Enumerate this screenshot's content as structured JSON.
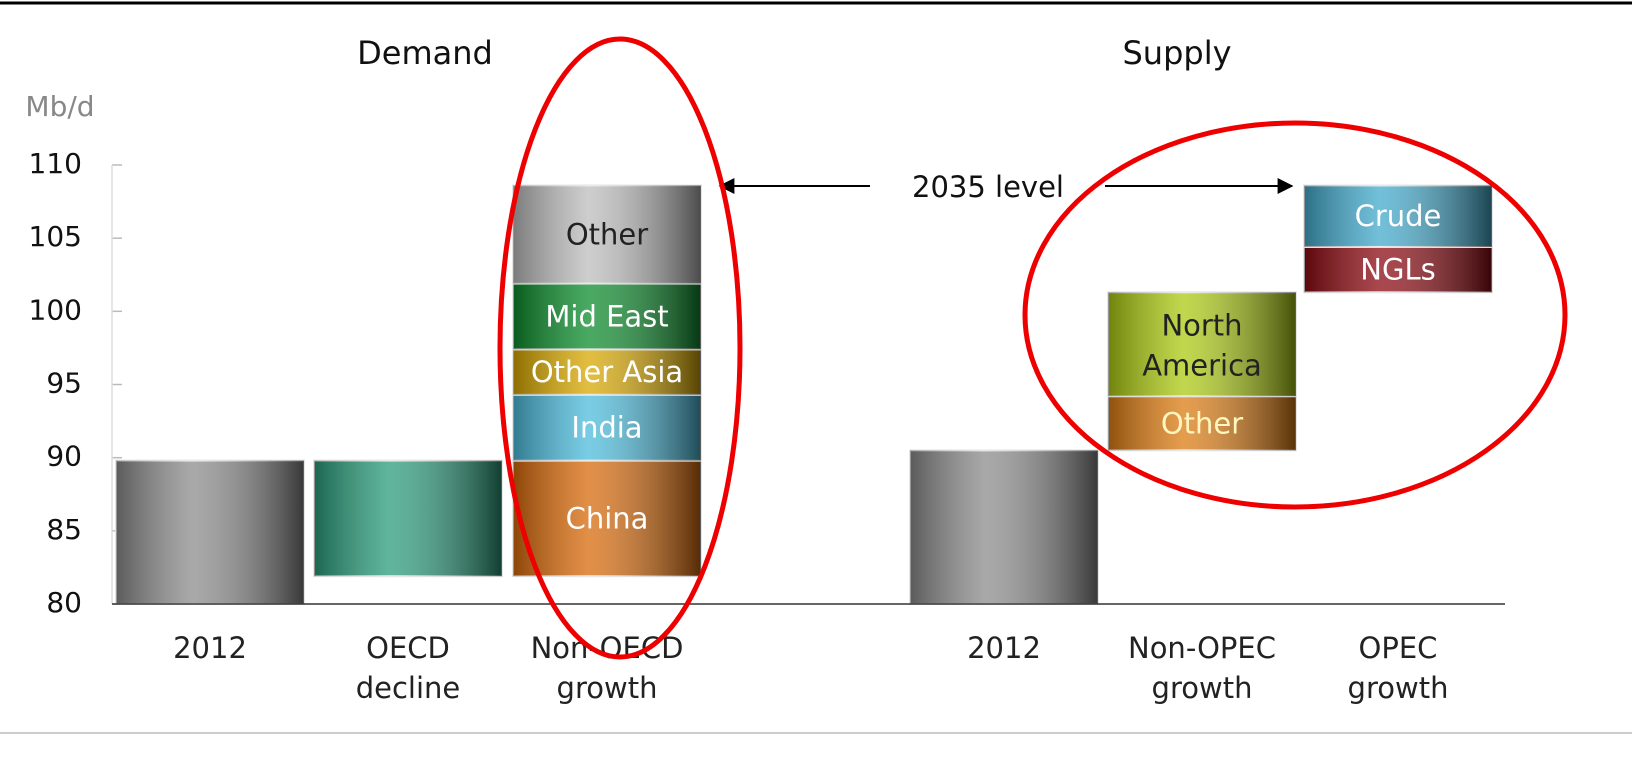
{
  "chart_data": {
    "type": "waterfall",
    "y_label": "Mb/d",
    "ylim": [
      80,
      110
    ],
    "yticks": [
      80,
      85,
      90,
      95,
      100,
      105,
      110
    ],
    "annotation": "2035 level",
    "panels": [
      {
        "title": "Demand",
        "columns": [
          {
            "label": [
              "2012"
            ],
            "segments": [
              {
                "value": 89.8,
                "color": "#8c8c8c"
              }
            ]
          },
          {
            "label": [
              "OECD",
              "decline"
            ],
            "segments": [
              {
                "value": -7.9,
                "color": "#2a9c7a"
              }
            ]
          },
          {
            "label": [
              "Non-OECD",
              "growth"
            ],
            "segments": [
              {
                "name": "China",
                "value": 7.9,
                "color": "#d86a0a",
                "text_color": "#ffffff"
              },
              {
                "name": "India",
                "value": 4.5,
                "color": "#4cbcdc",
                "text_color": "#ffffff"
              },
              {
                "name": "Other Asia",
                "value": 3.1,
                "color": "#d8a800",
                "text_color": "#ffffff"
              },
              {
                "name": "Mid East",
                "value": 4.5,
                "color": "#0c8c2c",
                "text_color": "#ffffff"
              },
              {
                "name": "Other",
                "value": 6.7,
                "color": "#bdbdbd",
                "text_color": "#222222"
              }
            ]
          }
        ]
      },
      {
        "title": "Supply",
        "columns": [
          {
            "label": [
              "2012"
            ],
            "segments": [
              {
                "value": 90.5,
                "color": "#8c8c8c"
              }
            ]
          },
          {
            "label": [
              "Non-OPEC",
              "growth"
            ],
            "segments": [
              {
                "name": "Other",
                "value": 3.7,
                "color": "#dc7c12",
                "text_color": "#fff6c0"
              },
              {
                "name": "North America",
                "value": 7.1,
                "color": "#acca12",
                "text_color": "#222222"
              }
            ]
          },
          {
            "label": [
              "OPEC",
              "growth"
            ],
            "segments": [
              {
                "name": "NGLs",
                "value": 3.1,
                "color": "#8c0a12",
                "text_color": "#ffffff"
              },
              {
                "name": "Crude",
                "value": 4.2,
                "color": "#42aacc",
                "text_color": "#ffffff"
              }
            ]
          }
        ]
      }
    ]
  }
}
